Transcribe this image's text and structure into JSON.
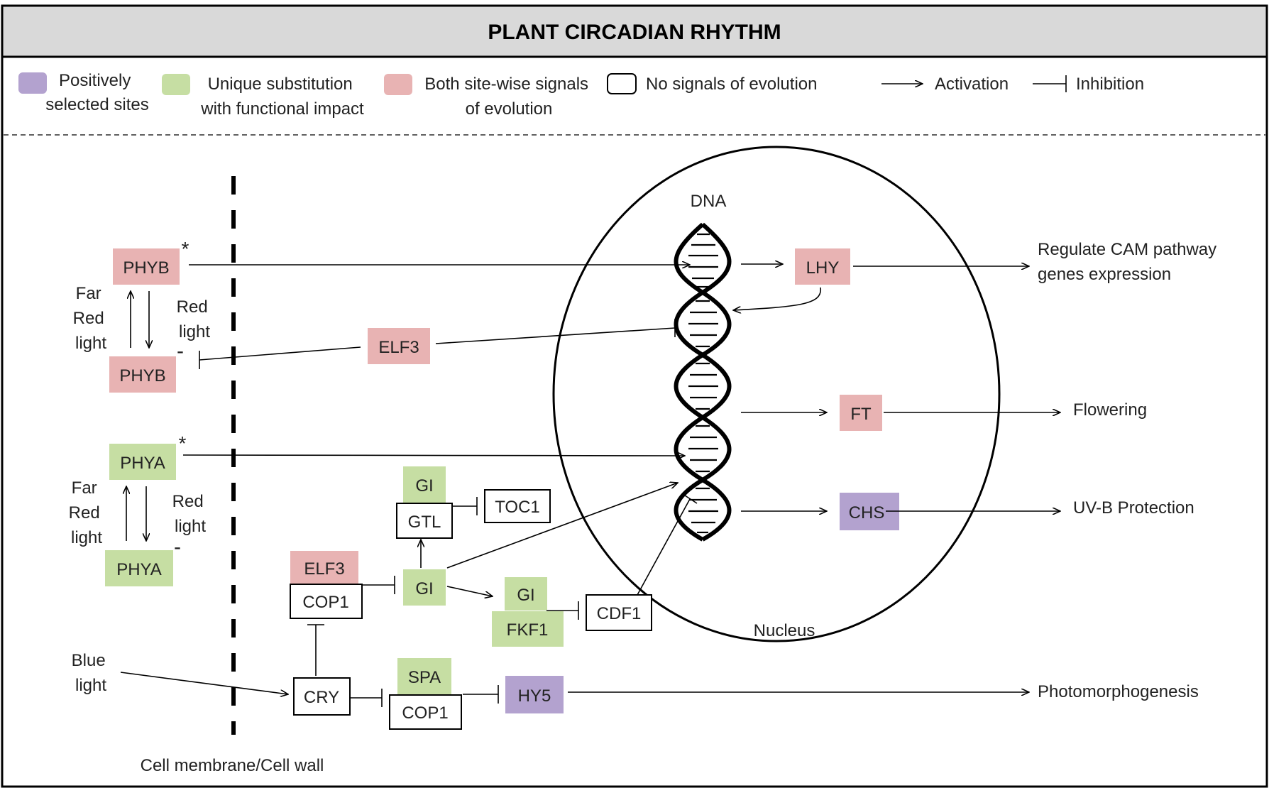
{
  "title": "PLANT CIRCADIAN RHYTHM",
  "colors": {
    "purple": "#b3a2cf",
    "green": "#c6dea3",
    "pink": "#e8b3b3",
    "white": "#ffffff",
    "header_bg": "#d9d9d9",
    "border": "#000000"
  },
  "legend": {
    "positively_selected": [
      "Positively",
      "selected sites"
    ],
    "unique_substitution": [
      "Unique substitution",
      "with functional impact"
    ],
    "both_signals": [
      "Both site-wise signals",
      "of evolution"
    ],
    "no_signals": "No signals of evolution",
    "activation": "Activation",
    "inhibition": "Inhibition"
  },
  "labels": {
    "dna": "DNA",
    "nucleus": "Nucleus",
    "cell_membrane": "Cell membrane/Cell  wall",
    "far_red_light": [
      "Far",
      "Red",
      "light"
    ],
    "red_light": [
      "Red",
      "light"
    ],
    "blue_light": [
      "Blue",
      "light"
    ],
    "asterisk": "*",
    "minus": "-"
  },
  "nodes": {
    "phyb_top": "PHYB",
    "phyb_bottom": "PHYB",
    "phya_top": "PHYA",
    "phya_bottom": "PHYA",
    "elf3_top": "ELF3",
    "elf3_mid": "ELF3",
    "lhy": "LHY",
    "ft": "FT",
    "chs": "CHS",
    "gi_top": "GI",
    "gtl": "GTL",
    "toc1": "TOC1",
    "gi_mid": "GI",
    "cop1_mid": "COP1",
    "gi_right": "GI",
    "fkf1": "FKF1",
    "cdf1": "CDF1",
    "cry": "CRY",
    "spa": "SPA",
    "cop1_bottom": "COP1",
    "hy5": "HY5"
  },
  "outputs": {
    "cam": [
      "Regulate CAM pathway",
      "genes expression"
    ],
    "flowering": "Flowering",
    "uvb": "UV-B Protection",
    "photomorphogenesis": "Photomorphogenesis"
  }
}
